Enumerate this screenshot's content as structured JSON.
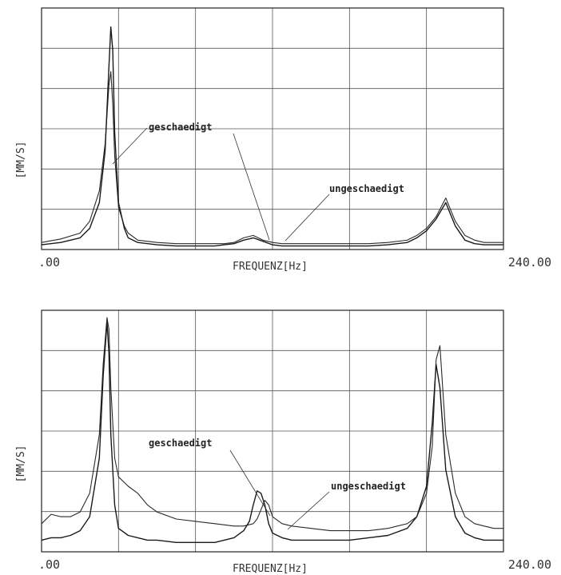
{
  "chart_data": [
    {
      "type": "line",
      "title": "",
      "xlabel": "FREQUENZ[Hz]",
      "ylabel": "[MM/S]",
      "xlim": [
        0,
        240
      ],
      "x_tick_labels": [
        ".00",
        "240.00"
      ],
      "grid": true,
      "grid_divisions": {
        "x": 6,
        "y": 6
      },
      "series": [
        {
          "name": "geschaedigt",
          "style": "thin",
          "x": [
            0,
            10,
            20,
            25,
            30,
            33,
            35,
            36,
            37,
            38,
            40,
            43,
            45,
            50,
            60,
            70,
            80,
            90,
            95,
            100,
            105,
            110,
            115,
            120,
            125,
            130,
            140,
            150,
            160,
            170,
            180,
            190,
            195,
            200,
            205,
            210,
            215,
            220,
            225,
            230,
            240
          ],
          "y": [
            0.03,
            0.045,
            0.07,
            0.12,
            0.25,
            0.45,
            0.7,
            0.76,
            0.62,
            0.4,
            0.18,
            0.1,
            0.07,
            0.04,
            0.03,
            0.025,
            0.025,
            0.025,
            0.025,
            0.03,
            0.05,
            0.06,
            0.04,
            0.03,
            0.025,
            0.025,
            0.025,
            0.025,
            0.025,
            0.025,
            0.03,
            0.04,
            0.06,
            0.09,
            0.14,
            0.22,
            0.12,
            0.06,
            0.04,
            0.03,
            0.03
          ]
        },
        {
          "name": "ungeschaedigt",
          "style": "bold",
          "x": [
            0,
            10,
            20,
            25,
            30,
            33,
            35,
            36,
            37,
            38,
            40,
            43,
            45,
            50,
            60,
            70,
            80,
            90,
            95,
            100,
            105,
            110,
            115,
            120,
            125,
            130,
            140,
            150,
            160,
            170,
            180,
            190,
            195,
            200,
            205,
            210,
            215,
            220,
            225,
            230,
            240
          ],
          "y": [
            0.02,
            0.03,
            0.05,
            0.09,
            0.2,
            0.42,
            0.78,
            0.95,
            0.85,
            0.5,
            0.2,
            0.09,
            0.05,
            0.03,
            0.02,
            0.015,
            0.015,
            0.015,
            0.02,
            0.025,
            0.04,
            0.05,
            0.035,
            0.02,
            0.015,
            0.015,
            0.015,
            0.015,
            0.015,
            0.015,
            0.02,
            0.03,
            0.05,
            0.08,
            0.13,
            0.2,
            0.1,
            0.04,
            0.025,
            0.02,
            0.02
          ]
        }
      ],
      "annotations": [
        "geschaedigt",
        "ungeschaedigt"
      ]
    },
    {
      "type": "line",
      "title": "",
      "xlabel": "FREQUENZ[Hz]",
      "ylabel": "[MM/S]",
      "xlim": [
        0,
        240
      ],
      "x_tick_labels": [
        ".00",
        "240.00"
      ],
      "grid": true,
      "grid_divisions": {
        "x": 6,
        "y": 6
      },
      "series": [
        {
          "name": "geschaedigt",
          "style": "thin",
          "x": [
            0,
            5,
            10,
            15,
            20,
            25,
            30,
            32,
            34,
            35,
            36,
            38,
            40,
            45,
            50,
            55,
            60,
            70,
            80,
            90,
            100,
            105,
            110,
            112,
            114,
            116,
            118,
            120,
            125,
            130,
            140,
            150,
            160,
            170,
            180,
            190,
            195,
            200,
            203,
            205,
            207,
            210,
            215,
            220,
            225,
            230,
            235,
            240
          ],
          "y": [
            0.12,
            0.16,
            0.15,
            0.15,
            0.17,
            0.25,
            0.5,
            0.8,
            1.0,
            0.95,
            0.7,
            0.4,
            0.32,
            0.28,
            0.25,
            0.2,
            0.17,
            0.14,
            0.13,
            0.12,
            0.11,
            0.11,
            0.12,
            0.14,
            0.18,
            0.22,
            0.2,
            0.15,
            0.12,
            0.11,
            0.1,
            0.09,
            0.09,
            0.09,
            0.1,
            0.12,
            0.15,
            0.25,
            0.45,
            0.82,
            0.88,
            0.5,
            0.25,
            0.15,
            0.12,
            0.11,
            0.1,
            0.1
          ]
        },
        {
          "name": "ungeschaedigt",
          "style": "bold",
          "x": [
            0,
            5,
            10,
            15,
            20,
            25,
            30,
            32,
            34,
            35,
            36,
            38,
            40,
            45,
            50,
            55,
            60,
            70,
            80,
            90,
            100,
            105,
            108,
            110,
            112,
            114,
            116,
            118,
            120,
            125,
            130,
            140,
            150,
            160,
            170,
            180,
            190,
            195,
            200,
            203,
            205,
            207,
            210,
            215,
            220,
            225,
            230,
            235,
            240
          ],
          "y": [
            0.05,
            0.06,
            0.06,
            0.07,
            0.09,
            0.15,
            0.4,
            0.75,
            0.98,
            0.85,
            0.5,
            0.2,
            0.1,
            0.07,
            0.06,
            0.05,
            0.05,
            0.04,
            0.04,
            0.04,
            0.06,
            0.09,
            0.13,
            0.2,
            0.26,
            0.25,
            0.2,
            0.12,
            0.08,
            0.06,
            0.05,
            0.05,
            0.05,
            0.05,
            0.06,
            0.07,
            0.1,
            0.15,
            0.28,
            0.55,
            0.8,
            0.7,
            0.35,
            0.15,
            0.08,
            0.06,
            0.05,
            0.05,
            0.05
          ]
        }
      ],
      "annotations": [
        "geschaedigt",
        "ungeschaedigt"
      ]
    }
  ]
}
